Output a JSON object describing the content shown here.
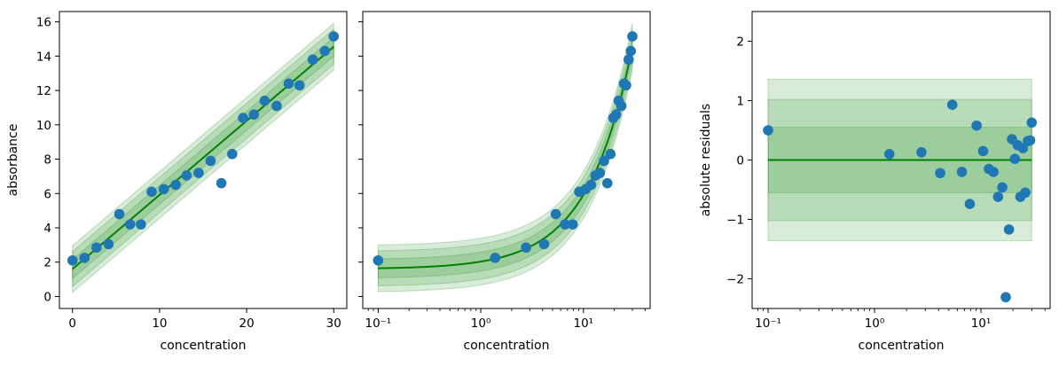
{
  "colors": {
    "points": "#1f77b4",
    "fit_line": "#008000",
    "band": "#008000",
    "axes": "#000000",
    "background": "#ffffff"
  },
  "chart_data": [
    {
      "type": "scatter",
      "id": "linear",
      "xscale": "linear",
      "xlabel": "concentration",
      "ylabel": "absorbance",
      "xlim": [
        -1.5,
        31.5
      ],
      "ylim": [
        -0.7,
        16.6
      ],
      "xticks": [
        0,
        10,
        20,
        30
      ],
      "xtick_labels": [
        "0",
        "10",
        "20",
        "30"
      ],
      "yticks": [
        0,
        2,
        4,
        6,
        8,
        10,
        12,
        14,
        16
      ],
      "ytick_labels": [
        "0",
        "2",
        "4",
        "6",
        "8",
        "10",
        "12",
        "14",
        "16"
      ],
      "show_ytick_labels": true,
      "fit": {
        "type": "line",
        "intercept": 1.6,
        "slope": 0.4317,
        "x_range": [
          0,
          30
        ]
      },
      "bands": [
        0.55,
        1.02,
        1.36
      ],
      "points": {
        "x": [
          0,
          1.38,
          2.76,
          4.14,
          5.38,
          6.62,
          7.86,
          9.1,
          10.48,
          11.86,
          13.1,
          14.48,
          15.86,
          17.1,
          18.34,
          19.59,
          20.83,
          22.07,
          23.45,
          24.83,
          26.07,
          27.59,
          28.97,
          30
        ],
        "y": [
          2.1,
          2.25,
          2.85,
          3.05,
          4.8,
          4.2,
          4.2,
          6.1,
          6.25,
          6.5,
          7.05,
          7.2,
          7.9,
          6.6,
          8.3,
          10.4,
          10.6,
          11.4,
          11.1,
          12.4,
          12.3,
          13.8,
          14.3,
          15.15
        ]
      }
    },
    {
      "type": "scatter",
      "id": "log",
      "xscale": "log",
      "xlabel": "concentration",
      "ylabel": "",
      "xlim_log10": [
        -1.15,
        1.65
      ],
      "ylim": [
        -0.7,
        16.6
      ],
      "xticks": [
        0.1,
        1,
        10
      ],
      "xtick_labels": [
        "10⁻¹",
        "10⁰",
        "10¹"
      ],
      "yticks": [
        0,
        2,
        4,
        6,
        8,
        10,
        12,
        14,
        16
      ],
      "show_ytick_labels": false,
      "fit": {
        "type": "line",
        "intercept": 1.6,
        "slope": 0.4317,
        "x_range": [
          0.1,
          30
        ]
      },
      "bands": [
        0.55,
        1.02,
        1.36
      ],
      "points": {
        "x": [
          0.1,
          1.38,
          2.76,
          4.14,
          5.38,
          6.62,
          7.86,
          9.1,
          10.48,
          11.86,
          13.1,
          14.48,
          15.86,
          17.1,
          18.34,
          19.59,
          20.83,
          22.07,
          23.45,
          24.83,
          26.07,
          27.59,
          28.97,
          30
        ],
        "y": [
          2.1,
          2.25,
          2.85,
          3.05,
          4.8,
          4.2,
          4.2,
          6.1,
          6.25,
          6.5,
          7.05,
          7.2,
          7.9,
          6.6,
          8.3,
          10.4,
          10.6,
          11.4,
          11.1,
          12.4,
          12.3,
          13.8,
          14.3,
          15.15
        ]
      }
    },
    {
      "type": "scatter",
      "id": "residuals",
      "xscale": "log",
      "xlabel": "concentration",
      "ylabel": "absolute residuals",
      "xlim_log10": [
        -1.15,
        1.65
      ],
      "ylim": [
        -2.5,
        2.5
      ],
      "xticks": [
        0.1,
        1,
        10
      ],
      "xtick_labels": [
        "10⁻¹",
        "10⁰",
        "10¹"
      ],
      "yticks": [
        -2,
        -1,
        0,
        1,
        2
      ],
      "ytick_labels": [
        "−2",
        "−1",
        "0",
        "1",
        "2"
      ],
      "show_ytick_labels": true,
      "fit": {
        "type": "line",
        "intercept": 0,
        "slope": 0,
        "x_range": [
          0.1,
          30
        ]
      },
      "bands": [
        0.55,
        1.02,
        1.36
      ],
      "points": {
        "x": [
          0.1,
          1.38,
          2.76,
          4.14,
          5.38,
          6.62,
          7.86,
          9.1,
          10.48,
          11.86,
          13.1,
          14.48,
          15.86,
          17.1,
          18.34,
          19.59,
          20.83,
          22.07,
          23.45,
          24.83,
          26.07,
          27.59,
          28.97,
          30
        ],
        "y": [
          0.5,
          0.1,
          0.13,
          -0.22,
          0.93,
          -0.2,
          -0.74,
          0.58,
          0.15,
          -0.15,
          -0.2,
          -0.62,
          -0.46,
          -2.31,
          -1.17,
          0.35,
          0.02,
          0.25,
          -0.62,
          0.2,
          -0.55,
          0.32,
          0.33,
          0.63
        ]
      }
    }
  ]
}
